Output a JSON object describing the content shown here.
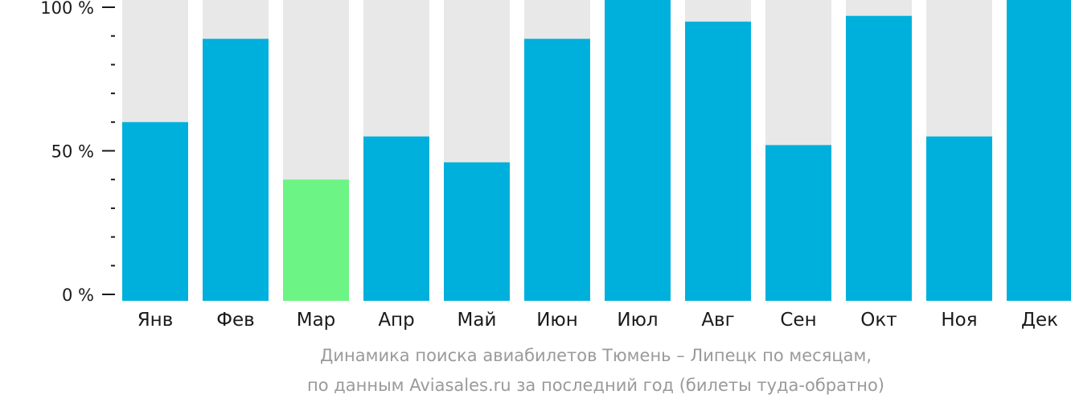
{
  "chart_data": {
    "type": "bar",
    "categories": [
      "Янв",
      "Фев",
      "Мар",
      "Апр",
      "Май",
      "Июн",
      "Июл",
      "Авг",
      "Сен",
      "Окт",
      "Ноя",
      "Дек"
    ],
    "values": [
      60,
      89,
      40,
      55,
      46,
      89,
      105,
      95,
      52,
      97,
      55,
      103
    ],
    "ylim": [
      0,
      100
    ],
    "y_ticks": [
      {
        "value": 0,
        "label": "0 %"
      },
      {
        "value": 50,
        "label": "50 %"
      },
      {
        "value": 100,
        "label": "100 %"
      }
    ],
    "y_minor_ticks": [
      10,
      20,
      30,
      40,
      60,
      70,
      80,
      90
    ],
    "highlight_index": 2,
    "colors": {
      "bar": "#00b0dc",
      "bar_highlight": "#6cf585",
      "bar_background": "#e8e8e8",
      "axis_text": "#1a1a1a",
      "caption_text": "#9a9a9a"
    },
    "grid": false,
    "legend": "none"
  },
  "caption": {
    "line1": "Динамика поиска авиабилетов Тюмень – Липецк по месяцам,",
    "line2": "по данным Aviasales.ru за последний год (билеты туда-обратно)"
  }
}
